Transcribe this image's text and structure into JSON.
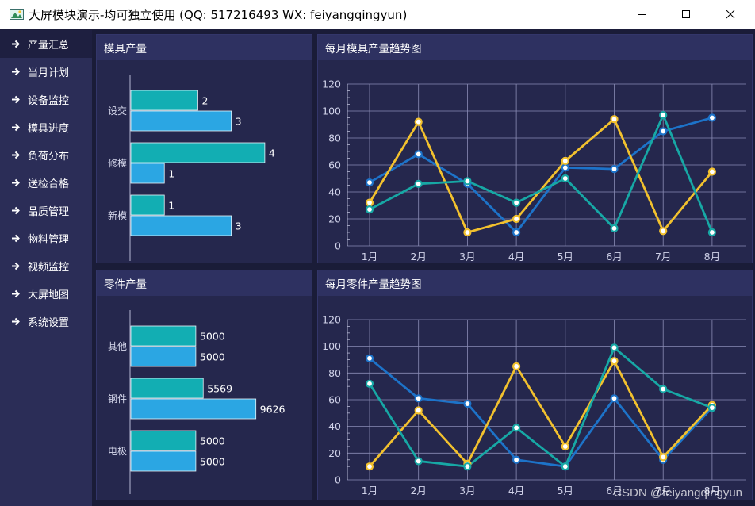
{
  "window": {
    "title": "大屏模块演示-均可独立使用 (QQ: 517216493  WX: feiyangqingyun)"
  },
  "sidebar": {
    "items": [
      {
        "label": "产量汇总",
        "active": true
      },
      {
        "label": "当月计划"
      },
      {
        "label": "设备监控"
      },
      {
        "label": "模具进度"
      },
      {
        "label": "负荷分布"
      },
      {
        "label": "送检合格"
      },
      {
        "label": "品质管理"
      },
      {
        "label": "物料管理"
      },
      {
        "label": "视频监控"
      },
      {
        "label": "大屏地图"
      },
      {
        "label": "系统设置"
      }
    ]
  },
  "panels": {
    "mold_output": {
      "title": "模具产量"
    },
    "mold_trend": {
      "title": "每月模具产量趋势图"
    },
    "part_output": {
      "title": "零件产量"
    },
    "part_trend": {
      "title": "每月零件产量趋势图"
    }
  },
  "colors": {
    "teal": "#12aeb3",
    "blue": "#2ba6e3",
    "line_blue": "#1d73c9",
    "line_yellow": "#f2c12e",
    "line_teal": "#17a8a5"
  },
  "chart_data": [
    {
      "type": "bar",
      "orientation": "horizontal",
      "categories": [
        "设交",
        "修模",
        "新模"
      ],
      "series": [
        {
          "values": [
            2,
            4,
            1
          ]
        },
        {
          "values": [
            3,
            1,
            3
          ]
        }
      ],
      "xlim": [
        0,
        4.5
      ]
    },
    {
      "type": "line",
      "categories": [
        "1月",
        "2月",
        "3月",
        "4月",
        "5月",
        "6月",
        "7月",
        "8月"
      ],
      "ylim": [
        0,
        120
      ],
      "yticks": [
        0,
        20,
        40,
        60,
        80,
        100,
        120
      ],
      "series": [
        {
          "color": "blue",
          "values": [
            47,
            68,
            46,
            10,
            58,
            57,
            85,
            95
          ]
        },
        {
          "color": "yellow",
          "values": [
            32,
            92,
            10,
            20,
            63,
            94,
            11,
            55
          ]
        },
        {
          "color": "teal",
          "values": [
            27,
            46,
            48,
            32,
            50,
            13,
            97,
            10
          ]
        }
      ]
    },
    {
      "type": "bar",
      "orientation": "horizontal",
      "categories": [
        "其他",
        "钢件",
        "电极"
      ],
      "series": [
        {
          "values": [
            5000,
            5569,
            5000
          ]
        },
        {
          "values": [
            5000,
            9626,
            5000
          ]
        }
      ],
      "xlim": [
        0,
        10500
      ]
    },
    {
      "type": "line",
      "categories": [
        "1月",
        "2月",
        "3月",
        "4月",
        "5月",
        "6月",
        "7月",
        "8月"
      ],
      "ylim": [
        0,
        120
      ],
      "yticks": [
        0,
        20,
        40,
        60,
        80,
        100,
        120
      ],
      "series": [
        {
          "color": "blue",
          "values": [
            91,
            61,
            57,
            15,
            10,
            61,
            15,
            54
          ]
        },
        {
          "color": "yellow",
          "values": [
            10,
            52,
            12,
            85,
            25,
            89,
            17,
            56
          ]
        },
        {
          "color": "teal",
          "values": [
            72,
            14,
            10,
            39,
            10,
            99,
            68,
            54
          ]
        }
      ]
    }
  ],
  "watermark": "CSDN @feiyangqingyun"
}
